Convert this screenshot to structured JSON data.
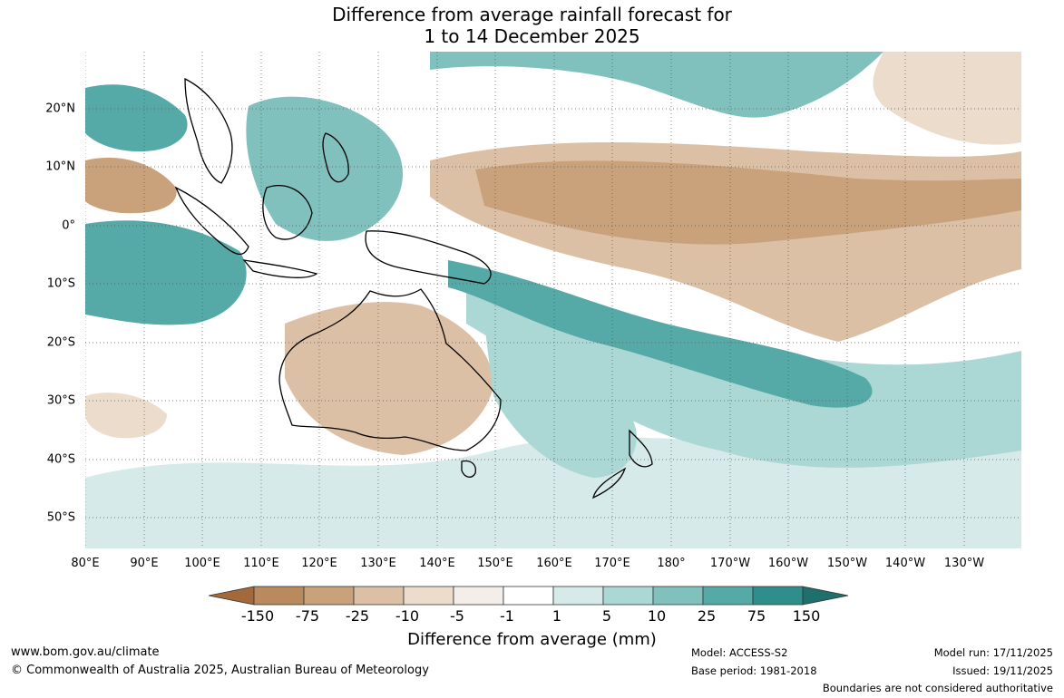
{
  "title_line1": "Difference from average rainfall forecast for",
  "title_line2": "1 to 14 December 2025",
  "lat_labels": [
    "20°N",
    "10°N",
    "0°",
    "10°S",
    "20°S",
    "30°S",
    "40°S",
    "50°S"
  ],
  "lon_labels": [
    "80°E",
    "90°E",
    "100°E",
    "110°E",
    "120°E",
    "130°E",
    "140°E",
    "150°E",
    "160°E",
    "170°E",
    "180°",
    "170°W",
    "160°W",
    "150°W",
    "140°W",
    "130°W"
  ],
  "legend": {
    "labels": [
      "-150",
      "-75",
      "-25",
      "-10",
      "-5",
      "-1",
      "1",
      "5",
      "10",
      "25",
      "75",
      "150"
    ],
    "colors": [
      "#a4693a",
      "#b98a5e",
      "#c9a27c",
      "#dcc0a5",
      "#ebdccc",
      "#f3eeea",
      "#ffffff",
      "#d6ebe9",
      "#abd7d4",
      "#80c1bd",
      "#55a9a7",
      "#2d8e8c",
      "#1f6f6d"
    ],
    "title": "Difference from average (mm)"
  },
  "footer": {
    "website": "www.bom.gov.au/climate",
    "copyright": "© Commonwealth of Australia 2025, Australian Bureau of Meteorology",
    "model": "Model: ACCESS-S2",
    "base_period": "Base period: 1981-2018",
    "model_run": "Model run: 17/11/2025",
    "issued": "Issued: 19/11/2025",
    "disclaimer": "Boundaries are not considered authoritative"
  }
}
